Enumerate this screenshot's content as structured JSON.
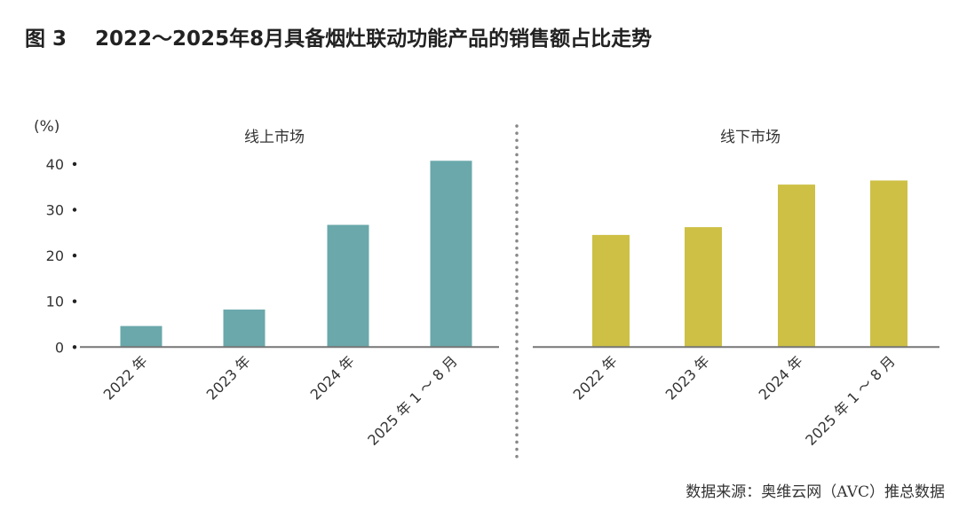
{
  "title": "图 3    2022～2025年8月具备烟灶联动功能产品的销售额占比走势",
  "source": "数据来源：奥维云网（AVC）推总数据",
  "chart_data": {
    "type": "bar",
    "ylabel": "(%)",
    "ylim": [
      0,
      40
    ],
    "yticks": [
      "0",
      "10",
      "20",
      "30",
      "40"
    ],
    "grid": false,
    "panels": [
      {
        "name": "线上市场",
        "color": "#6aa8ab",
        "categories": [
          "2022 年",
          "2023 年",
          "2024 年",
          "2025 年 1 ～ 8 月"
        ],
        "values": [
          4.6,
          8.2,
          26.7,
          40.7
        ]
      },
      {
        "name": "线下市场",
        "color": "#cdc045",
        "categories": [
          "2022 年",
          "2023 年",
          "2024 年",
          "2025 年 1 ～ 8 月"
        ],
        "values": [
          24.5,
          26.2,
          35.5,
          36.4
        ]
      }
    ]
  }
}
